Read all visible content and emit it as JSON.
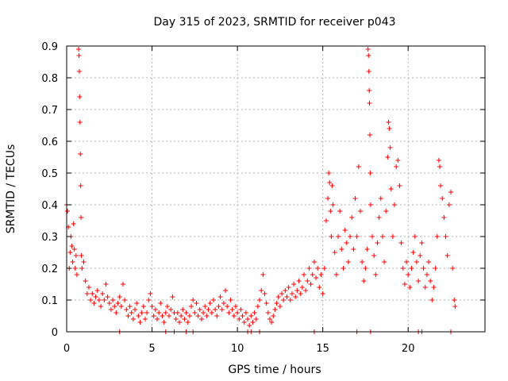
{
  "chart_data": {
    "type": "scatter",
    "title": "Day 315 of 2023, SRMTID for receiver p043",
    "xlabel": "GPS time / hours",
    "ylabel": "SRMTID / TECUs",
    "xlim": [
      0,
      24.5
    ],
    "ylim": [
      0,
      0.9
    ],
    "xticks": [
      0,
      5,
      10,
      15,
      20
    ],
    "xtick_labels": [
      "0",
      "5",
      "10",
      "15",
      "20"
    ],
    "yticks": [
      0,
      0.1,
      0.2,
      0.3,
      0.4,
      0.5,
      0.6,
      0.7,
      0.8,
      0.9
    ],
    "ytick_labels": [
      "0",
      "0.1",
      "0.2",
      "0.3",
      "0.4",
      "0.5",
      "0.6",
      "0.7",
      "0.8",
      "0.9"
    ],
    "grid": true,
    "marker": "+",
    "color": "#ff0000",
    "series": [
      {
        "name": "SRMTID",
        "points": [
          [
            0.0,
            0.4
          ],
          [
            0.05,
            0.38
          ],
          [
            0.1,
            0.33
          ],
          [
            0.15,
            0.2
          ],
          [
            0.2,
            0.25
          ],
          [
            0.25,
            0.3
          ],
          [
            0.3,
            0.27
          ],
          [
            0.35,
            0.22
          ],
          [
            0.4,
            0.34
          ],
          [
            0.45,
            0.26
          ],
          [
            0.5,
            0.2
          ],
          [
            0.55,
            0.24
          ],
          [
            0.6,
            0.18
          ],
          [
            0.7,
            0.89
          ],
          [
            0.72,
            0.87
          ],
          [
            0.74,
            0.82
          ],
          [
            0.76,
            0.74
          ],
          [
            0.78,
            0.66
          ],
          [
            0.8,
            0.56
          ],
          [
            0.82,
            0.46
          ],
          [
            0.84,
            0.36
          ],
          [
            0.86,
            0.24
          ],
          [
            0.9,
            0.2
          ],
          [
            1.0,
            0.22
          ],
          [
            1.1,
            0.16
          ],
          [
            1.2,
            0.12
          ],
          [
            1.3,
            0.14
          ],
          [
            1.4,
            0.1
          ],
          [
            1.5,
            0.12
          ],
          [
            1.6,
            0.09
          ],
          [
            1.7,
            0.11
          ],
          [
            1.8,
            0.13
          ],
          [
            1.9,
            0.1
          ],
          [
            2.0,
            0.08
          ],
          [
            2.1,
            0.12
          ],
          [
            2.2,
            0.1
          ],
          [
            2.3,
            0.15
          ],
          [
            2.4,
            0.11
          ],
          [
            2.5,
            0.09
          ],
          [
            2.6,
            0.07
          ],
          [
            2.7,
            0.1
          ],
          [
            2.8,
            0.08
          ],
          [
            2.9,
            0.06
          ],
          [
            3.0,
            0.09
          ],
          [
            3.1,
            0.11
          ],
          [
            3.2,
            0.08
          ],
          [
            3.3,
            0.15
          ],
          [
            3.4,
            0.1
          ],
          [
            3.5,
            0.07
          ],
          [
            3.6,
            0.05
          ],
          [
            3.7,
            0.08
          ],
          [
            3.8,
            0.06
          ],
          [
            3.9,
            0.04
          ],
          [
            4.0,
            0.07
          ],
          [
            4.1,
            0.09
          ],
          [
            4.2,
            0.05
          ],
          [
            4.3,
            0.03
          ],
          [
            4.4,
            0.06
          ],
          [
            4.5,
            0.08
          ],
          [
            4.6,
            0.04
          ],
          [
            4.7,
            0.06
          ],
          [
            4.8,
            0.1
          ],
          [
            4.9,
            0.12
          ],
          [
            5.0,
            0.08
          ],
          [
            5.1,
            0.05
          ],
          [
            5.2,
            0.07
          ],
          [
            5.3,
            0.04
          ],
          [
            5.4,
            0.06
          ],
          [
            5.5,
            0.09
          ],
          [
            5.6,
            0.05
          ],
          [
            5.7,
            0.03
          ],
          [
            5.8,
            0.06
          ],
          [
            5.9,
            0.08
          ],
          [
            6.0,
            0.05
          ],
          [
            6.1,
            0.07
          ],
          [
            6.2,
            0.11
          ],
          [
            6.3,
            0.06
          ],
          [
            6.4,
            0.04
          ],
          [
            6.5,
            0.06
          ],
          [
            6.6,
            0.03
          ],
          [
            6.7,
            0.05
          ],
          [
            6.8,
            0.07
          ],
          [
            6.9,
            0.04
          ],
          [
            7.0,
            0.06
          ],
          [
            7.1,
            0.03
          ],
          [
            7.2,
            0.05
          ],
          [
            7.3,
            0.08
          ],
          [
            7.4,
            0.1
          ],
          [
            7.5,
            0.06
          ],
          [
            7.6,
            0.09
          ],
          [
            7.7,
            0.05
          ],
          [
            7.8,
            0.07
          ],
          [
            7.9,
            0.04
          ],
          [
            8.0,
            0.06
          ],
          [
            8.1,
            0.08
          ],
          [
            8.2,
            0.05
          ],
          [
            8.3,
            0.07
          ],
          [
            8.4,
            0.09
          ],
          [
            8.5,
            0.06
          ],
          [
            8.6,
            0.1
          ],
          [
            8.7,
            0.07
          ],
          [
            8.8,
            0.05
          ],
          [
            8.9,
            0.08
          ],
          [
            9.0,
            0.11
          ],
          [
            9.1,
            0.07
          ],
          [
            9.2,
            0.09
          ],
          [
            9.3,
            0.13
          ],
          [
            9.4,
            0.08
          ],
          [
            9.5,
            0.06
          ],
          [
            9.6,
            0.1
          ],
          [
            9.7,
            0.07
          ],
          [
            9.8,
            0.05
          ],
          [
            9.9,
            0.08
          ],
          [
            10.0,
            0.06
          ],
          [
            10.1,
            0.04
          ],
          [
            10.2,
            0.07
          ],
          [
            10.3,
            0.05
          ],
          [
            10.4,
            0.03
          ],
          [
            10.5,
            0.06
          ],
          [
            10.6,
            0.04
          ],
          [
            10.7,
            0.02
          ],
          [
            10.8,
            0.05
          ],
          [
            10.9,
            0.03
          ],
          [
            11.0,
            0.06
          ],
          [
            11.1,
            0.04
          ],
          [
            11.2,
            0.08
          ],
          [
            11.3,
            0.1
          ],
          [
            11.4,
            0.13
          ],
          [
            11.5,
            0.18
          ],
          [
            11.6,
            0.12
          ],
          [
            11.7,
            0.09
          ],
          [
            11.8,
            0.06
          ],
          [
            11.9,
            0.04
          ],
          [
            12.0,
            0.03
          ],
          [
            12.1,
            0.05
          ],
          [
            12.2,
            0.07
          ],
          [
            12.3,
            0.09
          ],
          [
            12.4,
            0.11
          ],
          [
            12.5,
            0.08
          ],
          [
            12.6,
            0.12
          ],
          [
            12.7,
            0.1
          ],
          [
            12.8,
            0.13
          ],
          [
            12.9,
            0.11
          ],
          [
            13.0,
            0.14
          ],
          [
            13.1,
            0.1
          ],
          [
            13.2,
            0.12
          ],
          [
            13.3,
            0.15
          ],
          [
            13.4,
            0.11
          ],
          [
            13.5,
            0.13
          ],
          [
            13.6,
            0.16
          ],
          [
            13.7,
            0.12
          ],
          [
            13.8,
            0.14
          ],
          [
            13.9,
            0.18
          ],
          [
            14.0,
            0.13
          ],
          [
            14.1,
            0.16
          ],
          [
            14.2,
            0.2
          ],
          [
            14.3,
            0.15
          ],
          [
            14.4,
            0.18
          ],
          [
            14.5,
            0.22
          ],
          [
            14.6,
            0.17
          ],
          [
            14.7,
            0.2
          ],
          [
            14.8,
            0.14
          ],
          [
            14.9,
            0.18
          ],
          [
            15.0,
            0.12
          ],
          [
            15.1,
            0.2
          ],
          [
            15.2,
            0.35
          ],
          [
            15.3,
            0.42
          ],
          [
            15.35,
            0.5
          ],
          [
            15.4,
            0.47
          ],
          [
            15.45,
            0.38
          ],
          [
            15.5,
            0.3
          ],
          [
            15.55,
            0.46
          ],
          [
            15.6,
            0.4
          ],
          [
            15.7,
            0.25
          ],
          [
            15.8,
            0.18
          ],
          [
            15.9,
            0.3
          ],
          [
            16.0,
            0.38
          ],
          [
            16.1,
            0.26
          ],
          [
            16.2,
            0.2
          ],
          [
            16.3,
            0.32
          ],
          [
            16.4,
            0.28
          ],
          [
            16.5,
            0.22
          ],
          [
            16.6,
            0.3
          ],
          [
            16.7,
            0.36
          ],
          [
            16.8,
            0.26
          ],
          [
            16.9,
            0.42
          ],
          [
            17.0,
            0.3
          ],
          [
            17.1,
            0.52
          ],
          [
            17.2,
            0.38
          ],
          [
            17.3,
            0.22
          ],
          [
            17.4,
            0.16
          ],
          [
            17.5,
            0.2
          ],
          [
            17.6,
            0.26
          ],
          [
            17.65,
            0.89
          ],
          [
            17.68,
            0.87
          ],
          [
            17.7,
            0.82
          ],
          [
            17.72,
            0.76
          ],
          [
            17.74,
            0.72
          ],
          [
            17.76,
            0.62
          ],
          [
            17.78,
            0.5
          ],
          [
            17.8,
            0.4
          ],
          [
            17.9,
            0.3
          ],
          [
            18.0,
            0.24
          ],
          [
            18.1,
            0.18
          ],
          [
            18.2,
            0.28
          ],
          [
            18.3,
            0.36
          ],
          [
            18.4,
            0.42
          ],
          [
            18.5,
            0.3
          ],
          [
            18.6,
            0.22
          ],
          [
            18.7,
            0.38
          ],
          [
            18.8,
            0.55
          ],
          [
            18.85,
            0.66
          ],
          [
            18.9,
            0.64
          ],
          [
            18.95,
            0.58
          ],
          [
            19.0,
            0.45
          ],
          [
            19.1,
            0.3
          ],
          [
            19.2,
            0.4
          ],
          [
            19.3,
            0.52
          ],
          [
            19.4,
            0.54
          ],
          [
            19.5,
            0.46
          ],
          [
            19.6,
            0.28
          ],
          [
            19.7,
            0.2
          ],
          [
            19.8,
            0.15
          ],
          [
            19.9,
            0.22
          ],
          [
            20.0,
            0.18
          ],
          [
            20.1,
            0.14
          ],
          [
            20.2,
            0.2
          ],
          [
            20.3,
            0.25
          ],
          [
            20.4,
            0.3
          ],
          [
            20.5,
            0.22
          ],
          [
            20.6,
            0.16
          ],
          [
            20.7,
            0.24
          ],
          [
            20.8,
            0.28
          ],
          [
            20.9,
            0.2
          ],
          [
            21.0,
            0.14
          ],
          [
            21.1,
            0.18
          ],
          [
            21.2,
            0.22
          ],
          [
            21.3,
            0.16
          ],
          [
            21.4,
            0.1
          ],
          [
            21.5,
            0.14
          ],
          [
            21.6,
            0.2
          ],
          [
            21.7,
            0.3
          ],
          [
            21.8,
            0.54
          ],
          [
            21.85,
            0.52
          ],
          [
            21.9,
            0.46
          ],
          [
            22.0,
            0.42
          ],
          [
            22.1,
            0.36
          ],
          [
            22.2,
            0.3
          ],
          [
            22.3,
            0.24
          ],
          [
            22.4,
            0.4
          ],
          [
            22.5,
            0.44
          ],
          [
            22.6,
            0.2
          ],
          [
            22.7,
            0.1
          ],
          [
            22.75,
            0.08
          ]
        ]
      }
    ],
    "zero_markers_x": [
      3.1,
      5.8,
      6.3,
      7.0,
      7.4,
      10.6,
      10.8,
      11.3,
      14.5,
      17.0,
      17.8,
      20.6,
      20.8,
      22.5
    ]
  }
}
